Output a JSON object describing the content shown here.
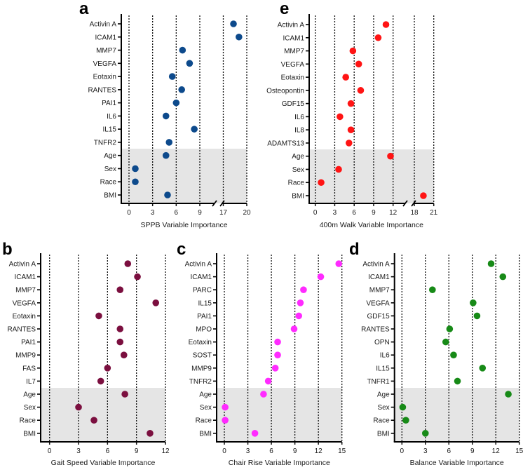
{
  "chart_data": [
    {
      "id": "a",
      "type": "scatter",
      "panel_label": "a",
      "xlabel": "SPPB Variable Importance",
      "color": "#0d4a8c",
      "segments": [
        {
          "domain": [
            0,
            9
          ],
          "ticks": [
            0,
            3,
            6,
            9
          ]
        },
        {
          "domain": [
            17,
            20
          ],
          "ticks": [
            17,
            20
          ]
        }
      ],
      "shaded_categories": [
        "Age",
        "Sex",
        "Race",
        "BMI"
      ],
      "categories": [
        "Activin A",
        "ICAM1",
        "MMP7",
        "VEGFA",
        "Eotaxin",
        "RANTES",
        "PAI1",
        "IL6",
        "IL15",
        "TNFR2",
        "Age",
        "Sex",
        "Race",
        "BMI"
      ],
      "values": [
        18.3,
        19.0,
        6.8,
        7.7,
        5.5,
        6.7,
        6.0,
        4.7,
        8.3,
        5.1,
        4.7,
        0.8,
        0.8,
        4.9
      ]
    },
    {
      "id": "e",
      "type": "scatter",
      "panel_label": "e",
      "xlabel": "400m Walk Variable Importance",
      "color": "#ff1414",
      "segments": [
        {
          "domain": [
            0,
            12
          ],
          "ticks": [
            0,
            3,
            6,
            9,
            12
          ]
        },
        {
          "domain": [
            18,
            21
          ],
          "ticks": [
            18,
            21
          ]
        }
      ],
      "shaded_categories": [
        "Age",
        "Sex",
        "Race",
        "BMI"
      ],
      "categories": [
        "Activin A",
        "ICAM1",
        "MMP7",
        "VEGFA",
        "Eotaxin",
        "Osteopontin",
        "GDF15",
        "IL6",
        "IL8",
        "ADAMTS13",
        "Age",
        "Sex",
        "Race",
        "BMI"
      ],
      "values": [
        10.9,
        9.7,
        5.8,
        6.7,
        4.7,
        7.0,
        5.5,
        3.8,
        5.5,
        5.2,
        11.6,
        3.6,
        0.9,
        19.4
      ]
    },
    {
      "id": "b",
      "type": "scatter",
      "panel_label": "b",
      "xlabel": "Gait Speed Variable Importance",
      "color": "#7b0f3f",
      "segments": [
        {
          "domain": [
            0,
            12
          ],
          "ticks": [
            0,
            3,
            6,
            9,
            12
          ]
        }
      ],
      "shaded_categories": [
        "Age",
        "Sex",
        "Race",
        "BMI"
      ],
      "categories": [
        "Activin A",
        "ICAM1",
        "MMP7",
        "VEGFA",
        "Eotaxin",
        "RANTES",
        "PAI1",
        "MMP9",
        "FAS",
        "IL7",
        "Age",
        "Sex",
        "Race",
        "BMI"
      ],
      "values": [
        8.1,
        9.1,
        7.3,
        11.0,
        5.1,
        7.3,
        7.3,
        7.7,
        6.0,
        5.3,
        7.8,
        3.0,
        4.6,
        10.4
      ]
    },
    {
      "id": "c",
      "type": "scatter",
      "panel_label": "c",
      "xlabel": "Chair Rise Variable Importance",
      "color": "#ff2bff",
      "segments": [
        {
          "domain": [
            0,
            15
          ],
          "ticks": [
            0,
            3,
            6,
            9,
            12,
            15
          ]
        }
      ],
      "shaded_categories": [
        "Age",
        "Sex",
        "Race",
        "BMI"
      ],
      "categories": [
        "Activin A",
        "ICAM1",
        "PARC",
        "IL15",
        "PAI1",
        "MPO",
        "Eotaxin",
        "SOST",
        "MMP9",
        "TNFR2",
        "Age",
        "Sex",
        "Race",
        "BMI"
      ],
      "values": [
        14.6,
        12.3,
        10.1,
        9.7,
        9.5,
        8.9,
        6.8,
        6.8,
        6.5,
        5.6,
        5.0,
        0.1,
        0.1,
        3.9
      ]
    },
    {
      "id": "d",
      "type": "scatter",
      "panel_label": "d",
      "xlabel": "Balance Variable Importance",
      "color": "#178a17",
      "segments": [
        {
          "domain": [
            0,
            15
          ],
          "ticks": [
            0,
            3,
            6,
            9,
            12,
            15
          ]
        }
      ],
      "shaded_categories": [
        "Age",
        "Sex",
        "Race",
        "BMI"
      ],
      "categories": [
        "Activin A",
        "ICAM1",
        "MMP7",
        "VEGFA",
        "GDF15",
        "RANTES",
        "OPN",
        "IL6",
        "IL15",
        "TNFR1",
        "Age",
        "Sex",
        "Race",
        "BMI"
      ],
      "values": [
        11.4,
        12.9,
        3.9,
        9.1,
        9.6,
        6.1,
        5.6,
        6.6,
        10.3,
        7.1,
        13.6,
        0.1,
        0.5,
        3.0
      ]
    }
  ]
}
